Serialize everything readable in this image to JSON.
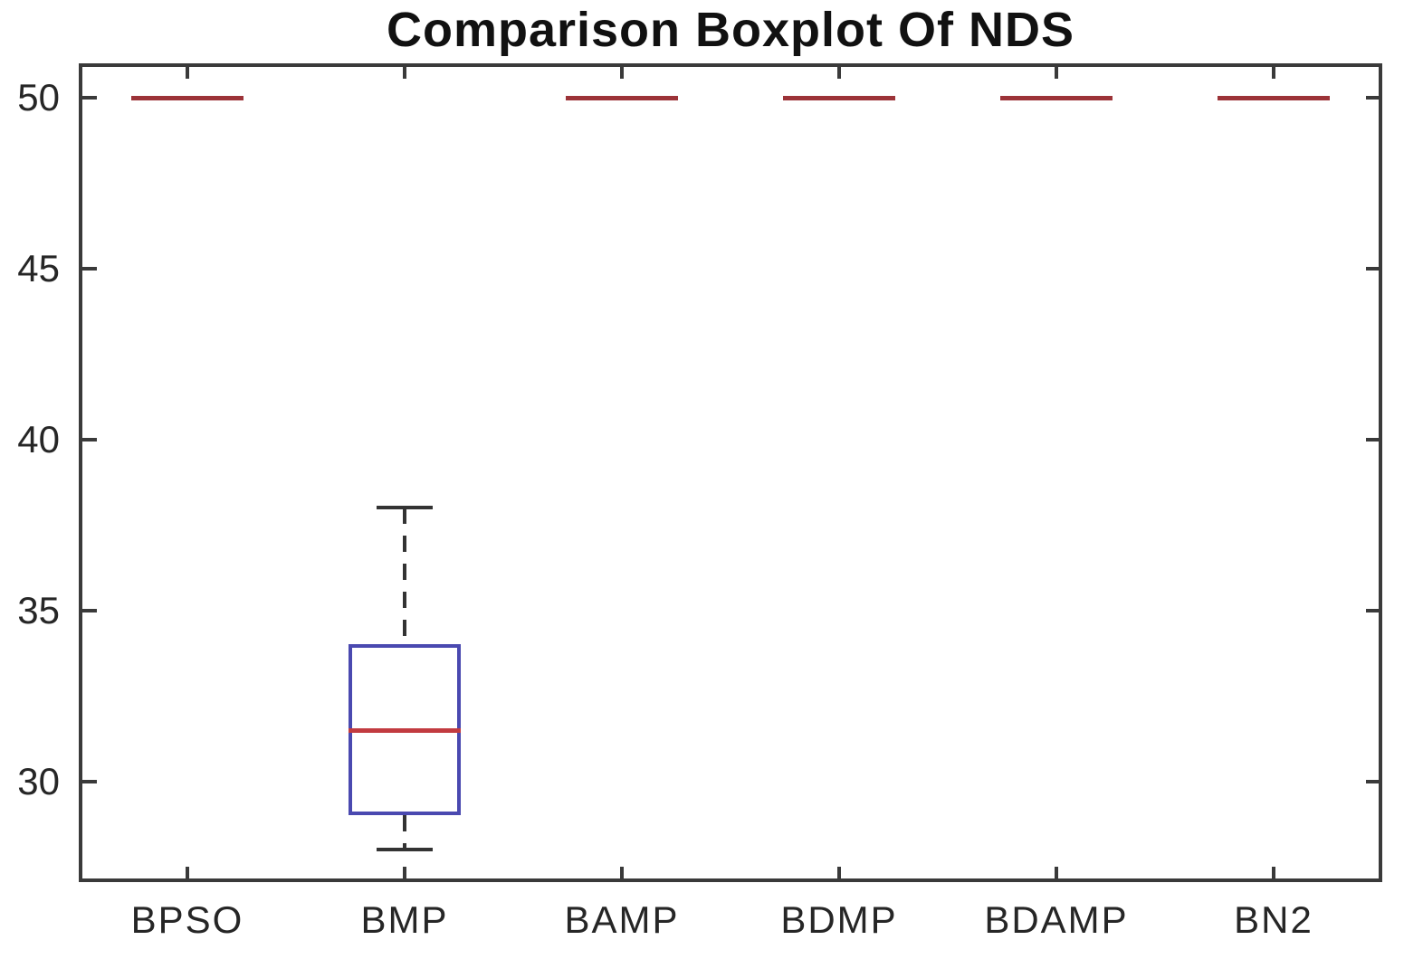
{
  "chart_data": {
    "type": "boxplot",
    "title": "Comparison Boxplot Of NDS",
    "categories": [
      "BPSO",
      "BMP",
      "BAMP",
      "BDMP",
      "BDAMP",
      "BN2"
    ],
    "series": [
      {
        "name": "BPSO",
        "whisker_low": 50,
        "q1": 50,
        "median": 50,
        "q3": 50,
        "whisker_high": 50,
        "collapsed": true
      },
      {
        "name": "BMP",
        "whisker_low": 28,
        "q1": 29,
        "median": 31.5,
        "q3": 34,
        "whisker_high": 38,
        "collapsed": false
      },
      {
        "name": "BAMP",
        "whisker_low": 50,
        "q1": 50,
        "median": 50,
        "q3": 50,
        "whisker_high": 50,
        "collapsed": true
      },
      {
        "name": "BDMP",
        "whisker_low": 50,
        "q1": 50,
        "median": 50,
        "q3": 50,
        "whisker_high": 50,
        "collapsed": true
      },
      {
        "name": "BDAMP",
        "whisker_low": 50,
        "q1": 50,
        "median": 50,
        "q3": 50,
        "whisker_high": 50,
        "collapsed": true
      },
      {
        "name": "BN2",
        "whisker_low": 50,
        "q1": 50,
        "median": 50,
        "q3": 50,
        "whisker_high": 50,
        "collapsed": true
      }
    ],
    "yticks": [
      30,
      35,
      40,
      45,
      50
    ],
    "ylim": [
      27.05,
      51.0
    ],
    "xlabel": "",
    "ylabel": "",
    "grid": false,
    "legend_position": "none",
    "colors": {
      "box": "#4a49b0",
      "median": "#c23b40",
      "collapsed_line": "#9c3338",
      "whisker": "#333333",
      "cap": "#333333",
      "axis": "#3a3a3a",
      "tick_label": "#262626",
      "title": "#111111",
      "background": "#ffffff"
    }
  }
}
